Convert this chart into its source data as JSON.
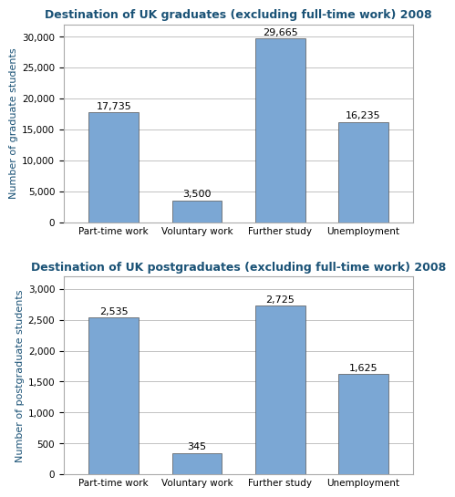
{
  "grad_title": "Destination of UK graduates (excluding full-time work) 2008",
  "postgrad_title": "Destination of UK postgraduates (excluding full-time work) 2008",
  "categories": [
    "Part-time work",
    "Voluntary work",
    "Further study",
    "Unemployment"
  ],
  "grad_values": [
    17735,
    3500,
    29665,
    16235
  ],
  "postgrad_values": [
    2535,
    345,
    2725,
    1625
  ],
  "grad_labels": [
    "17,735",
    "3,500",
    "29,665",
    "16,235"
  ],
  "postgrad_labels": [
    "2,535",
    "345",
    "2,725",
    "1,625"
  ],
  "bar_color": "#7ba7d4",
  "bar_edgecolor": "#555555",
  "bg_color": "#ffffff",
  "grad_ylabel": "Number of graduate students",
  "postgrad_ylabel": "Number of postgraduate students",
  "grad_ylim": [
    0,
    32000
  ],
  "postgrad_ylim": [
    0,
    3200
  ],
  "grad_yticks": [
    0,
    5000,
    10000,
    15000,
    20000,
    25000,
    30000
  ],
  "postgrad_yticks": [
    0,
    500,
    1000,
    1500,
    2000,
    2500,
    3000
  ],
  "title_color": "#1a5276",
  "ylabel_color": "#1a5276",
  "title_fontsize": 9,
  "label_fontsize": 8,
  "ylabel_fontsize": 8,
  "tick_fontsize": 7.5,
  "bar_width": 0.6
}
